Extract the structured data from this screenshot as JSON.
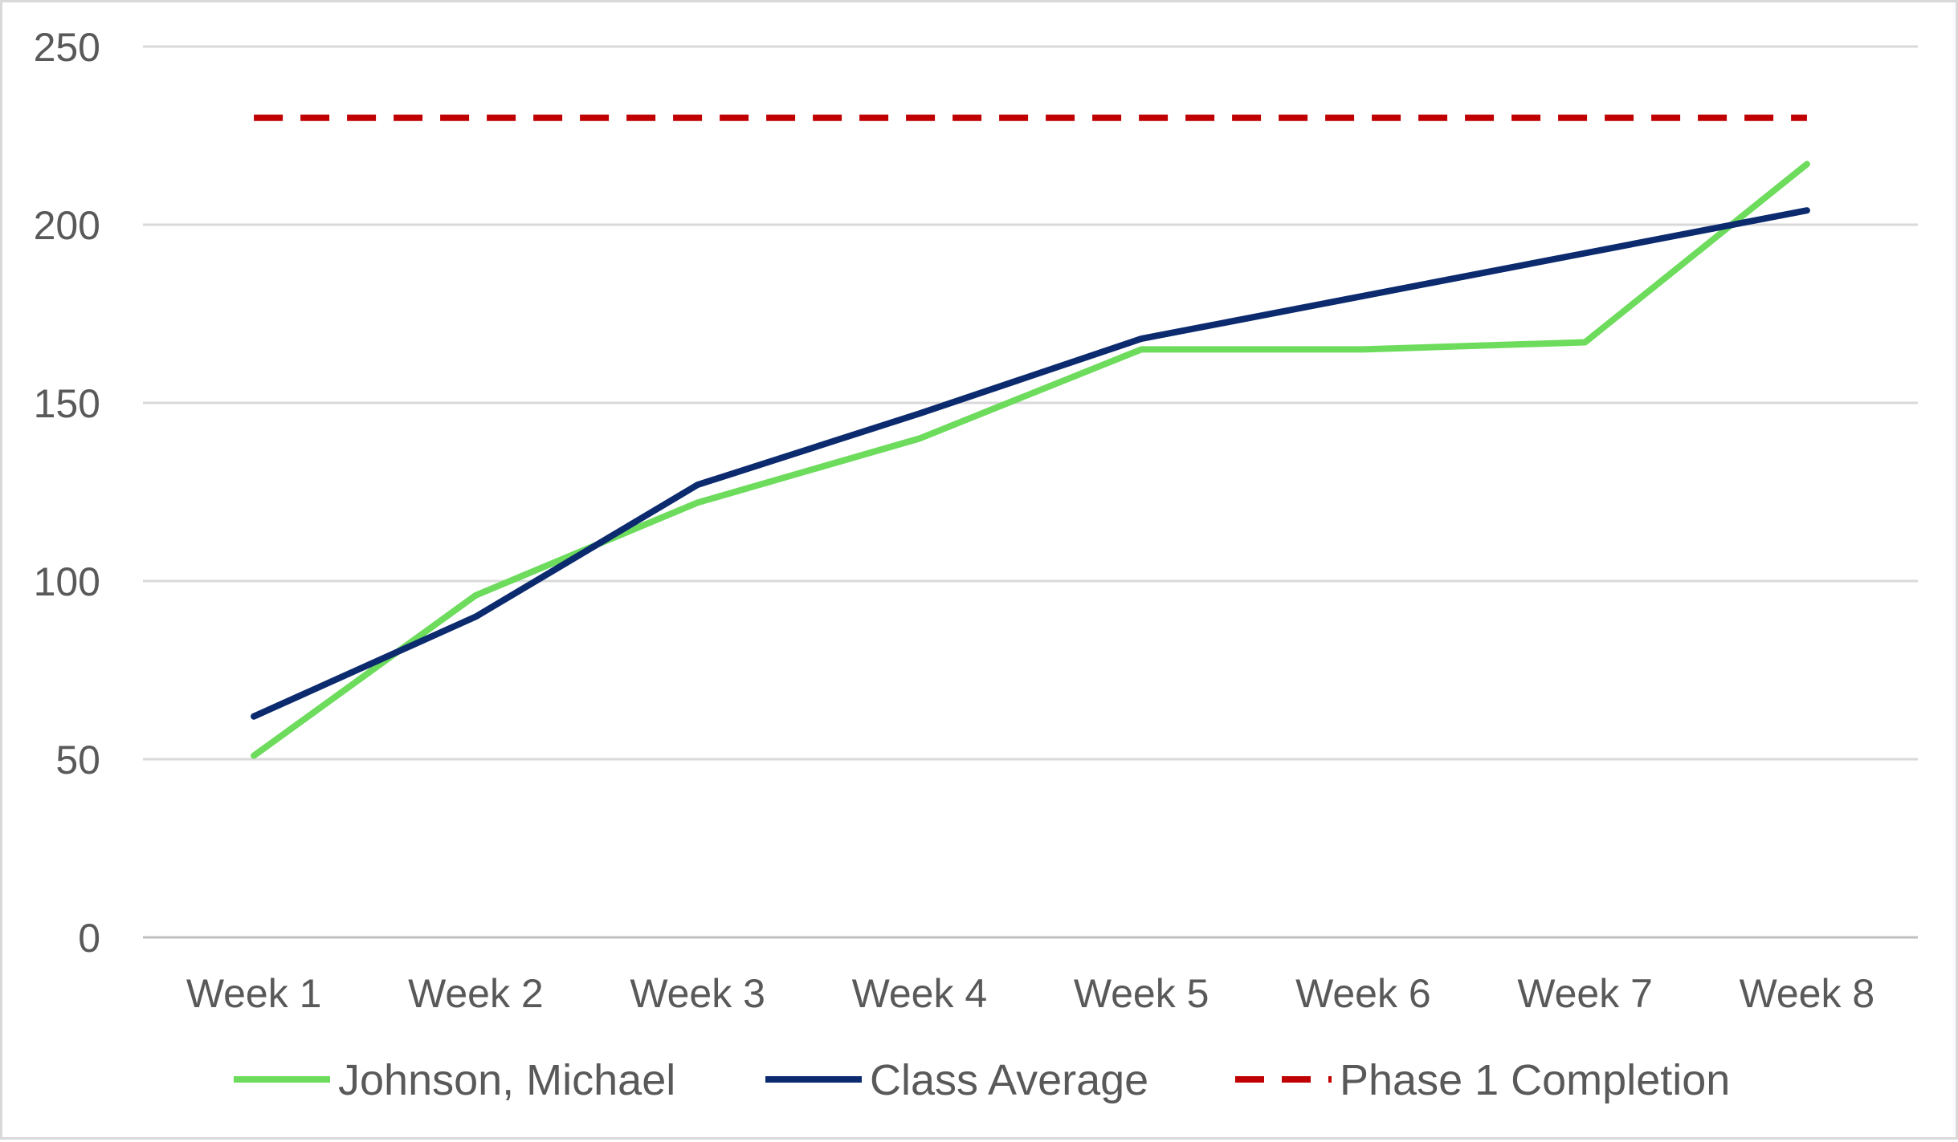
{
  "chart_data": {
    "type": "line",
    "categories": [
      "Week 1",
      "Week 2",
      "Week 3",
      "Week 4",
      "Week 5",
      "Week 6",
      "Week 7",
      "Week 8"
    ],
    "series": [
      {
        "name": "Johnson, Michael",
        "color": "#6ddc5c",
        "dash": "solid",
        "values": [
          51,
          96,
          122,
          140,
          165,
          165,
          167,
          217
        ]
      },
      {
        "name": "Class Average",
        "color": "#0c2a6e",
        "dash": "solid",
        "values": [
          62,
          90,
          127,
          147,
          168,
          180,
          192,
          204
        ]
      },
      {
        "name": "Phase 1 Completion",
        "color": "#c00000",
        "dash": "dashed",
        "values": [
          230,
          230,
          230,
          230,
          230,
          230,
          230,
          230
        ]
      }
    ],
    "ylim": [
      0,
      250
    ],
    "yticks": [
      0,
      50,
      100,
      150,
      200,
      250
    ],
    "grid": "horizontal",
    "legend": "bottom"
  }
}
